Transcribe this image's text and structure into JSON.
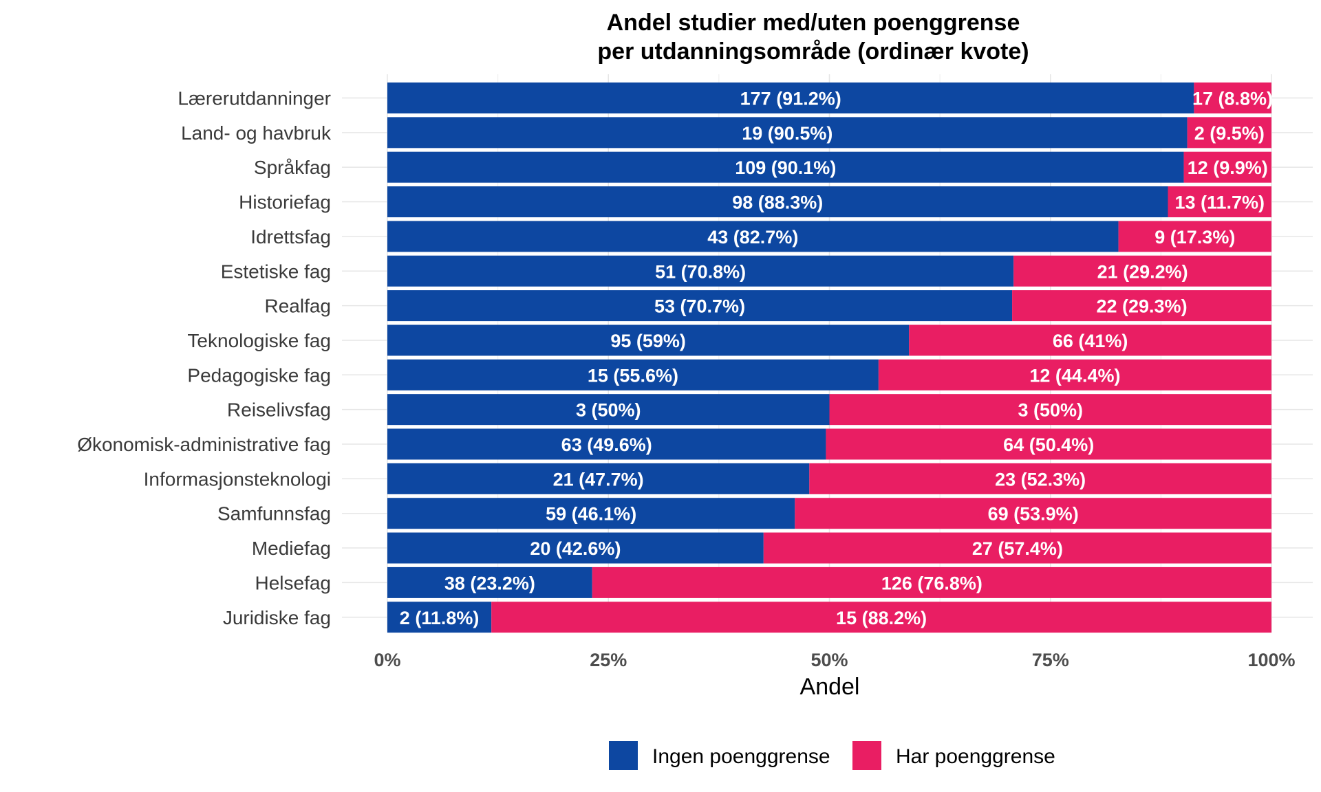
{
  "chart_data": {
    "type": "bar",
    "orientation": "horizontal",
    "stacked": "percent",
    "title": "Andel studier med/uten poenggrense\nper utdanningsområde (ordinær kvote)",
    "xlabel": "Andel",
    "ylabel": "",
    "xlim": [
      0,
      1
    ],
    "x_ticks": [
      "0%",
      "25%",
      "50%",
      "75%",
      "100%"
    ],
    "grid": true,
    "legend_position": "bottom",
    "categories": [
      "Lærerutdanninger",
      "Land- og havbruk",
      "Språkfag",
      "Historiefag",
      "Idrettsfag",
      "Estetiske fag",
      "Realfag",
      "Teknologiske fag",
      "Pedagogiske fag",
      "Reiselivsfag",
      "Økonomisk-administrative fag",
      "Informasjonsteknologi",
      "Samfunnsfag",
      "Mediefag",
      "Helsefag",
      "Juridiske fag"
    ],
    "series": [
      {
        "name": "Ingen poenggrense",
        "color": "#0D47A1",
        "values": [
          177,
          19,
          109,
          98,
          43,
          51,
          53,
          95,
          15,
          3,
          63,
          21,
          59,
          20,
          38,
          2
        ],
        "labels": [
          "177 (91.2%)",
          "19 (90.5%)",
          "109 (90.1%)",
          "98 (88.3%)",
          "43 (82.7%)",
          "51 (70.8%)",
          "53 (70.7%)",
          "95 (59%)",
          "15 (55.6%)",
          "3 (50%)",
          "63 (49.6%)",
          "21 (47.7%)",
          "59 (46.1%)",
          "20 (42.6%)",
          "38 (23.2%)",
          "2 (11.8%)"
        ]
      },
      {
        "name": "Har poenggrense",
        "color": "#E91E63",
        "values": [
          17,
          2,
          12,
          13,
          9,
          21,
          22,
          66,
          12,
          3,
          64,
          23,
          69,
          27,
          126,
          15
        ],
        "labels": [
          "17 (8.8%)",
          "2 (9.5%)",
          "12 (9.9%)",
          "13 (11.7%)",
          "9 (17.3%)",
          "21 (29.2%)",
          "22 (29.3%)",
          "66 (41%)",
          "12 (44.4%)",
          "3 (50%)",
          "64 (50.4%)",
          "23 (52.3%)",
          "69 (53.9%)",
          "27 (57.4%)",
          "126 (76.8%)",
          "15 (88.2%)"
        ]
      }
    ]
  }
}
